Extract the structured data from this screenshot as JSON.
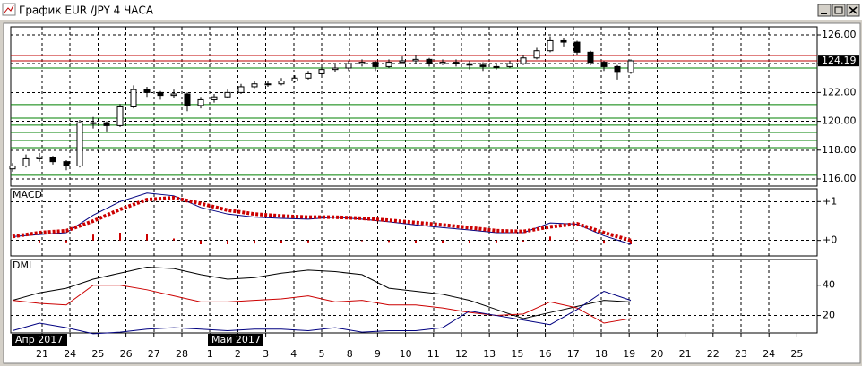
{
  "window": {
    "title": "График EUR /JPY  4 ЧАСА"
  },
  "x_axis": {
    "labels": [
      "21",
      "24",
      "25",
      "26",
      "27",
      "28",
      "1",
      "2",
      "3",
      "4",
      "5",
      "8",
      "9",
      "10",
      "11",
      "12",
      "13",
      "15",
      "16",
      "17",
      "18",
      "19",
      "20",
      "21",
      "22",
      "23",
      "24",
      "25"
    ],
    "months": [
      "Апр 2017",
      "Май 2017"
    ]
  },
  "chart_data": [
    {
      "type": "candlestick",
      "open": [
        116.7,
        116.9,
        117.4,
        117.5,
        117.2,
        116.9,
        119.9,
        119.9,
        119.7,
        121.0,
        122.2,
        122.0,
        121.8,
        121.9,
        121.1,
        121.5,
        121.7,
        122.0,
        122.4,
        122.6,
        122.6,
        122.8,
        123.0,
        123.3,
        123.6,
        123.7,
        124.0,
        124.1,
        123.8,
        124.1,
        124.2,
        124.3,
        124.0,
        124.1,
        124.0,
        123.9,
        123.8,
        123.8,
        124.0,
        124.4,
        124.9,
        125.6,
        125.5,
        124.8,
        124.1,
        123.8,
        123.4
      ],
      "high": [
        117.1,
        117.7,
        117.8,
        117.6,
        117.3,
        120.1,
        120.3,
        120.0,
        121.2,
        122.5,
        122.4,
        122.1,
        122.2,
        122.0,
        121.7,
        121.9,
        122.2,
        122.6,
        122.8,
        122.8,
        123.0,
        123.2,
        123.5,
        123.8,
        124.0,
        124.2,
        124.3,
        124.2,
        124.3,
        124.5,
        124.6,
        124.4,
        124.3,
        124.3,
        124.2,
        124.1,
        124.0,
        124.2,
        124.6,
        125.1,
        125.9,
        125.8,
        125.6,
        124.9,
        124.2,
        123.9,
        124.3
      ],
      "low": [
        116.5,
        116.8,
        117.2,
        117.0,
        116.6,
        116.8,
        119.5,
        119.3,
        119.6,
        120.9,
        121.7,
        121.5,
        121.6,
        120.7,
        120.9,
        121.3,
        121.6,
        121.9,
        122.3,
        122.4,
        122.5,
        122.7,
        122.9,
        123.2,
        123.4,
        123.5,
        123.8,
        123.5,
        123.7,
        124.0,
        124.0,
        123.8,
        123.9,
        123.8,
        123.6,
        123.5,
        123.6,
        123.7,
        123.9,
        124.3,
        124.8,
        125.2,
        124.6,
        123.9,
        123.5,
        122.9,
        123.3
      ],
      "close": [
        116.9,
        117.4,
        117.5,
        117.2,
        116.9,
        119.9,
        119.9,
        119.7,
        121.0,
        122.2,
        122.0,
        121.8,
        121.9,
        121.1,
        121.5,
        121.7,
        122.0,
        122.4,
        122.6,
        122.6,
        122.8,
        123.0,
        123.3,
        123.6,
        123.7,
        124.0,
        124.1,
        123.8,
        124.1,
        124.2,
        124.3,
        124.0,
        124.1,
        124.0,
        123.9,
        123.8,
        123.8,
        124.0,
        124.4,
        124.9,
        125.6,
        125.5,
        124.8,
        124.1,
        123.8,
        123.4,
        124.2
      ],
      "levels": [
        {
          "value": 124.57,
          "color": "#c00000"
        },
        {
          "value": 124.2,
          "color": "#c00000"
        },
        {
          "value": 123.7,
          "color": "#008000"
        },
        {
          "value": 121.16,
          "color": "#008000"
        },
        {
          "value": 120.22,
          "color": "#008000"
        },
        {
          "value": 119.73,
          "color": "#008000"
        },
        {
          "value": 119.23,
          "color": "#008000"
        },
        {
          "value": 118.67,
          "color": "#008000"
        },
        {
          "value": 118.17,
          "color": "#008000"
        },
        {
          "value": 116.25,
          "color": "#008000"
        }
      ],
      "last_price": 124.19,
      "ylim": [
        115.5,
        126.56
      ],
      "yticks": [
        {
          "value": 116,
          "label": "116.00"
        },
        {
          "value": 118,
          "label": "118.00"
        },
        {
          "value": 120,
          "label": "120.00"
        },
        {
          "value": 122,
          "label": "122.00"
        },
        {
          "value": 124,
          "label": "124.00"
        },
        {
          "value": 126,
          "label": "126.00"
        }
      ],
      "grid": true
    },
    {
      "type": "line",
      "title": "MACD",
      "series": [
        {
          "style": "bars",
          "color": "#cc0000",
          "values": [
            0.0,
            -0.05,
            -0.05,
            0.15,
            0.2,
            0.17,
            0.05,
            -0.1,
            -0.1,
            -0.08,
            -0.06,
            -0.05,
            0.0,
            -0.02,
            -0.04,
            -0.06,
            -0.07,
            -0.06,
            -0.05,
            -0.03,
            0.1,
            -0.01,
            -0.08,
            -0.1
          ]
        },
        {
          "style": "line",
          "color": "#000080",
          "values": [
            0.1,
            0.15,
            0.2,
            0.65,
            1.0,
            1.22,
            1.15,
            0.85,
            0.68,
            0.6,
            0.57,
            0.55,
            0.6,
            0.55,
            0.48,
            0.4,
            0.33,
            0.27,
            0.2,
            0.2,
            0.45,
            0.42,
            0.12,
            -0.1
          ]
        },
        {
          "style": "dots",
          "color": "#cc0000",
          "values": [
            0.1,
            0.2,
            0.25,
            0.5,
            0.8,
            1.05,
            1.1,
            0.95,
            0.78,
            0.68,
            0.63,
            0.6,
            0.6,
            0.57,
            0.52,
            0.46,
            0.4,
            0.33,
            0.25,
            0.23,
            0.35,
            0.43,
            0.2,
            0.0
          ]
        }
      ],
      "ylim": [
        -0.4,
        1.33
      ],
      "yticks": [
        {
          "value": 0,
          "label": "+0"
        },
        {
          "value": 1,
          "label": "+1"
        }
      ],
      "grid": true
    },
    {
      "type": "line",
      "title": "DMI",
      "series": [
        {
          "style": "line",
          "color": "#000000",
          "values": [
            30,
            35,
            38,
            44,
            48,
            52,
            51,
            47,
            44,
            45,
            48,
            50,
            49,
            47,
            38,
            36,
            34,
            30,
            24,
            18,
            22,
            26,
            30,
            29
          ]
        },
        {
          "style": "line",
          "color": "#cc0000",
          "values": [
            30,
            28,
            27,
            40,
            40,
            37,
            33,
            29,
            29,
            30,
            31,
            33,
            29,
            30,
            27,
            27,
            25,
            22,
            20,
            21,
            29,
            25,
            15,
            18
          ]
        },
        {
          "style": "line",
          "color": "#000080",
          "values": [
            10,
            15,
            12,
            8,
            9,
            11,
            12,
            11,
            10,
            11,
            11,
            10,
            12,
            9,
            10,
            10,
            12,
            23,
            20,
            17,
            14,
            24,
            36,
            30
          ]
        }
      ],
      "ylim": [
        8.5,
        57
      ],
      "yticks": [
        20,
        40
      ],
      "grid": true
    }
  ]
}
